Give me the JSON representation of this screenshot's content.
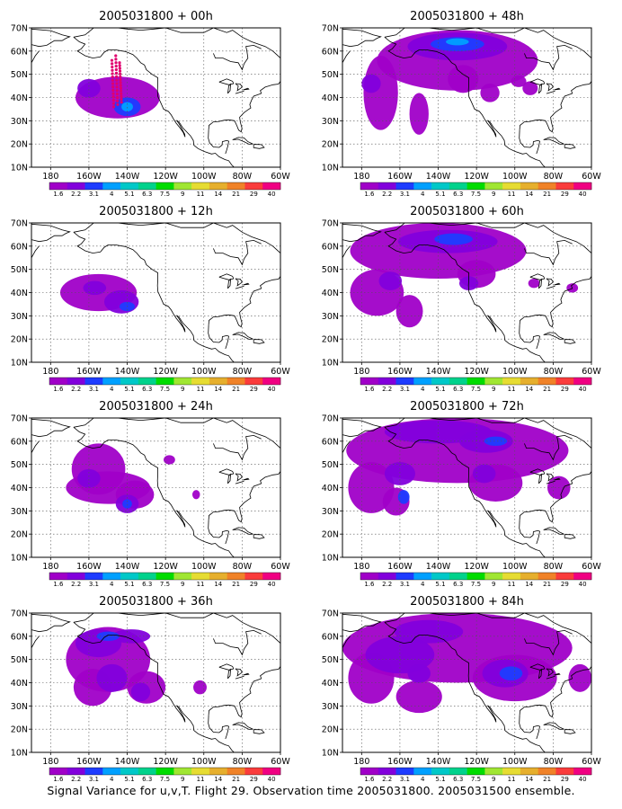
{
  "figure": {
    "caption": "Signal Variance for u,v,T. Flight 29. Observation time 2005031800. 2005031500 ensemble.",
    "map_domain": {
      "lon_range": [
        "170E",
        "60W"
      ],
      "lat_range": [
        "10N",
        "70N"
      ]
    },
    "lon_ticks": [
      "180",
      "160W",
      "140W",
      "120W",
      "100W",
      "80W",
      "60W"
    ],
    "lat_ticks": [
      "70N",
      "60N",
      "50N",
      "40N",
      "30N",
      "20N",
      "10N"
    ],
    "colorbar": {
      "colors": [
        "#a000c8",
        "#8200dc",
        "#1e3cff",
        "#00a0ff",
        "#00c8c8",
        "#00d28c",
        "#00dc00",
        "#a0e632",
        "#e6dc32",
        "#e6af2d",
        "#f08228",
        "#fa3c3c",
        "#f00082"
      ],
      "labels": [
        "1.6",
        "2.2",
        "3.1",
        "4",
        "5.1",
        "6.3",
        "7.5",
        "9",
        "11",
        "14",
        "21",
        "29",
        "40"
      ]
    },
    "panels": [
      {
        "title": "2005031800 + 00h",
        "lead_hours": 0
      },
      {
        "title": "2005031800 + 48h",
        "lead_hours": 48
      },
      {
        "title": "2005031800 + 12h",
        "lead_hours": 12
      },
      {
        "title": "2005031800 + 60h",
        "lead_hours": 60
      },
      {
        "title": "2005031800 + 24h",
        "lead_hours": 24
      },
      {
        "title": "2005031800 + 72h",
        "lead_hours": 72
      },
      {
        "title": "2005031800 + 36h",
        "lead_hours": 36
      },
      {
        "title": "2005031800 + 84h",
        "lead_hours": 84
      }
    ],
    "observations_00h": {
      "description_color": "#e0006e",
      "tracks": 3
    }
  }
}
